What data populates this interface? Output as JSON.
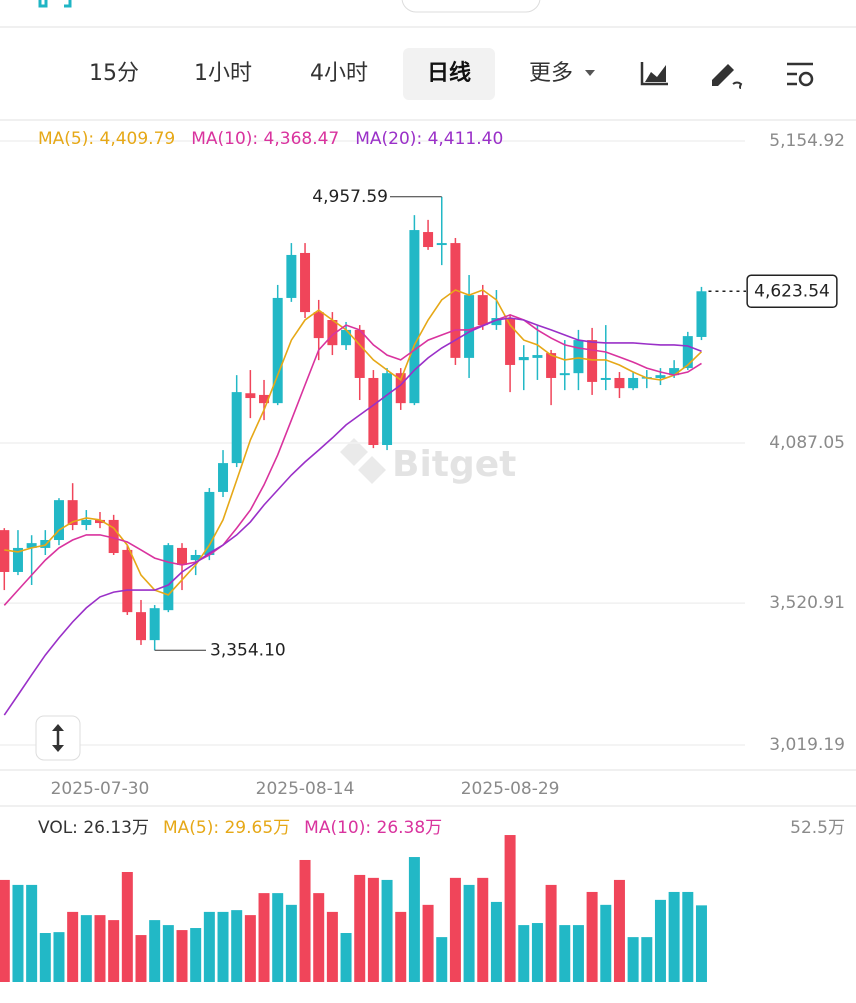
{
  "watermark": "Bitget",
  "toolbar": {
    "tabs": [
      "15分",
      "1小时",
      "4小时",
      "日线",
      "更多"
    ],
    "selected": 3
  },
  "chart_data": [
    {
      "type": "candlestick",
      "categories": [
        null,
        null,
        null,
        null,
        null,
        null,
        null,
        "2025-07-30",
        null,
        null,
        null,
        null,
        null,
        null,
        null,
        null,
        null,
        null,
        null,
        null,
        null,
        null,
        "2025-08-14",
        null,
        null,
        null,
        null,
        null,
        null,
        null,
        null,
        null,
        null,
        null,
        null,
        null,
        null,
        "2025-08-29",
        null,
        null,
        null,
        null,
        null,
        null,
        null,
        null,
        null,
        null,
        null,
        null,
        null,
        null
      ],
      "open": [
        3779,
        3631,
        3716,
        3716,
        3744,
        3885,
        3797,
        3815,
        3815,
        3709,
        3489,
        3390,
        3496,
        3716,
        3673,
        3691,
        3914,
        4016,
        4263,
        4257,
        4228,
        4600,
        4759,
        4550,
        4522,
        4433,
        4487,
        4317,
        4080,
        4334,
        4228,
        4833,
        4787,
        4794,
        4388,
        4610,
        4504,
        4529,
        4380,
        4388,
        4405,
        4327,
        4334,
        4451,
        4310,
        4317,
        4281,
        4317,
        4317,
        4327,
        4352,
        4462
      ],
      "high": [
        3786,
        3779,
        3761,
        3779,
        3892,
        3945,
        3850,
        3843,
        3833,
        3726,
        3532,
        3514,
        3733,
        3733,
        3709,
        3928,
        4062,
        4327,
        4345,
        4310,
        4646,
        4794,
        4794,
        4593,
        4550,
        4515,
        4504,
        4345,
        4352,
        4352,
        4893,
        4876,
        4957.59,
        4812,
        4681,
        4646,
        4628,
        4540,
        4433,
        4504,
        4416,
        4451,
        4487,
        4494,
        4504,
        4338,
        4338,
        4345,
        4352,
        4380,
        4480,
        4639
      ],
      "low": [
        3567,
        3620,
        3585,
        3691,
        3726,
        3779,
        3779,
        3786,
        3691,
        3479,
        3373,
        3354.1,
        3489,
        3567,
        3620,
        3673,
        3896,
        4002,
        4175,
        4168,
        4221,
        4586,
        4529,
        4380,
        4398,
        4416,
        4239,
        4069,
        4062,
        4204,
        4221,
        4770,
        4716,
        4363,
        4317,
        4487,
        4487,
        4267,
        4274,
        4310,
        4221,
        4274,
        4274,
        4257,
        4274,
        4246,
        4274,
        4281,
        4292,
        4317,
        4345,
        4451
      ],
      "close": [
        3631,
        3716,
        3733,
        3744,
        3885,
        3797,
        3815,
        3804,
        3698,
        3489,
        3390,
        3503,
        3726,
        3656,
        3691,
        3914,
        4016,
        4267,
        4246,
        4228,
        4600,
        4752,
        4550,
        4458,
        4433,
        4487,
        4317,
        4080,
        4334,
        4228,
        4840,
        4780,
        4794,
        4388,
        4610,
        4504,
        4529,
        4363,
        4391,
        4398,
        4317,
        4334,
        4451,
        4303,
        4317,
        4281,
        4317,
        4320,
        4327,
        4352,
        4465,
        4623.54
      ],
      "up_color": "#22b8c6",
      "down_color": "#f0455a",
      "series": [
        {
          "name": "MA(5): 4,409.79",
          "color": "#e6a817",
          "values": [
            3709,
            3702,
            3716,
            3726,
            3779,
            3808,
            3822,
            3815,
            3786,
            3726,
            3620,
            3567,
            3550,
            3603,
            3656,
            3726,
            3815,
            3956,
            4098,
            4204,
            4327,
            4451,
            4522,
            4557,
            4522,
            4487,
            4434,
            4381,
            4345,
            4310,
            4434,
            4522,
            4593,
            4628,
            4610,
            4628,
            4593,
            4504,
            4451,
            4434,
            4398,
            4381,
            4388,
            4381,
            4381,
            4363,
            4338,
            4317,
            4310,
            4327,
            4363,
            4409.79
          ]
        },
        {
          "name": "MA(10): 4,368.47",
          "color": "#d9339e",
          "values": [
            3513,
            3567,
            3620,
            3673,
            3716,
            3744,
            3762,
            3762,
            3751,
            3737,
            3709,
            3680,
            3666,
            3656,
            3666,
            3691,
            3726,
            3786,
            3850,
            3939,
            4045,
            4168,
            4292,
            4416,
            4469,
            4504,
            4487,
            4434,
            4398,
            4381,
            4416,
            4451,
            4469,
            4487,
            4487,
            4504,
            4522,
            4540,
            4522,
            4487,
            4458,
            4434,
            4423,
            4416,
            4409,
            4391,
            4373,
            4352,
            4338,
            4327,
            4338,
            4368.47
          ]
        },
        {
          "name": "MA(20): 4,411.40",
          "color": "#9a30c8",
          "values": [
            3125,
            3196,
            3267,
            3337,
            3398,
            3454,
            3504,
            3543,
            3560,
            3567,
            3567,
            3567,
            3585,
            3631,
            3663,
            3698,
            3726,
            3762,
            3808,
            3868,
            3921,
            3974,
            4020,
            4062,
            4105,
            4151,
            4186,
            4221,
            4257,
            4292,
            4345,
            4388,
            4423,
            4451,
            4480,
            4501,
            4522,
            4529,
            4522,
            4504,
            4487,
            4469,
            4451,
            4444,
            4441,
            4441,
            4441,
            4437,
            4434,
            4434,
            4430,
            4411.4
          ]
        }
      ],
      "ylim": [
        3019.19,
        5154.92
      ],
      "yticks": [
        {
          "value": 5154.92,
          "label": "5,154.92"
        },
        {
          "value": 4087.05,
          "label": "4,087.05"
        },
        {
          "value": 3520.91,
          "label": "3,520.91"
        },
        {
          "value": 3019.19,
          "label": "3,019.19"
        }
      ],
      "grid": true,
      "high_label": {
        "value": 4957.59,
        "label": "4,957.59"
      },
      "low_label": {
        "value": 3354.1,
        "label": "3,354.10"
      },
      "last_price": {
        "value": 4623.54,
        "label": "4,623.54"
      }
    },
    {
      "type": "bar",
      "legend": [
        {
          "label": "VOL: 26.13万",
          "color": "#333333"
        },
        {
          "label": "MA(5): 29.65万",
          "color": "#e6a817"
        },
        {
          "label": "MA(10): 26.38万",
          "color": "#d9339e"
        }
      ],
      "values": [
        34.8,
        33.1,
        33.1,
        16.7,
        17.0,
        23.9,
        22.8,
        22.8,
        21.1,
        37.5,
        16.0,
        21.1,
        19.4,
        17.7,
        18.4,
        23.9,
        23.9,
        24.5,
        22.8,
        30.3,
        30.3,
        26.3,
        41.6,
        30.3,
        23.9,
        16.7,
        36.5,
        35.5,
        34.8,
        23.9,
        42.6,
        26.3,
        15.3,
        35.5,
        33.1,
        35.5,
        27.3,
        50.1,
        19.4,
        20.1,
        33.1,
        19.4,
        19.4,
        30.7,
        26.3,
        34.8,
        15.3,
        15.3,
        28.0,
        30.7,
        30.7,
        26.13
      ],
      "ylim": [
        0,
        52.5
      ],
      "yticks": [
        {
          "value": 52.5,
          "label": "52.5万"
        }
      ]
    }
  ]
}
